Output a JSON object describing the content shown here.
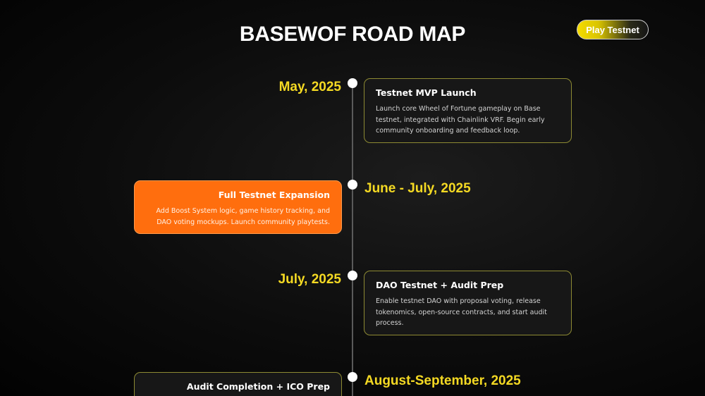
{
  "header": {
    "title": "BASEWOF ROAD MAP",
    "cta_label": "Play Testnet"
  },
  "colors": {
    "accent_yellow": "#f4d923",
    "accent_orange": "#ff6e0e",
    "card_border": "#8d8a33"
  },
  "milestones": [
    {
      "date": "May, 2025",
      "title": "Testnet MVP Launch",
      "description": "Launch core Wheel of Fortune gameplay on Base testnet, integrated with Chainlink VRF. Begin early community onboarding and feedback loop."
    },
    {
      "date": "June - July, 2025",
      "title": "Full Testnet Expansion",
      "description": "Add Boost System logic, game history tracking, and DAO voting mockups. Launch community playtests."
    },
    {
      "date": "July, 2025",
      "title": "DAO Testnet + Audit Prep",
      "description": "Enable testnet DAO with proposal voting, release tokenomics, open-source contracts, and start audit process."
    },
    {
      "date": "August-September, 2025",
      "title": "Audit Completion + ICO Prep",
      "description": ""
    }
  ]
}
